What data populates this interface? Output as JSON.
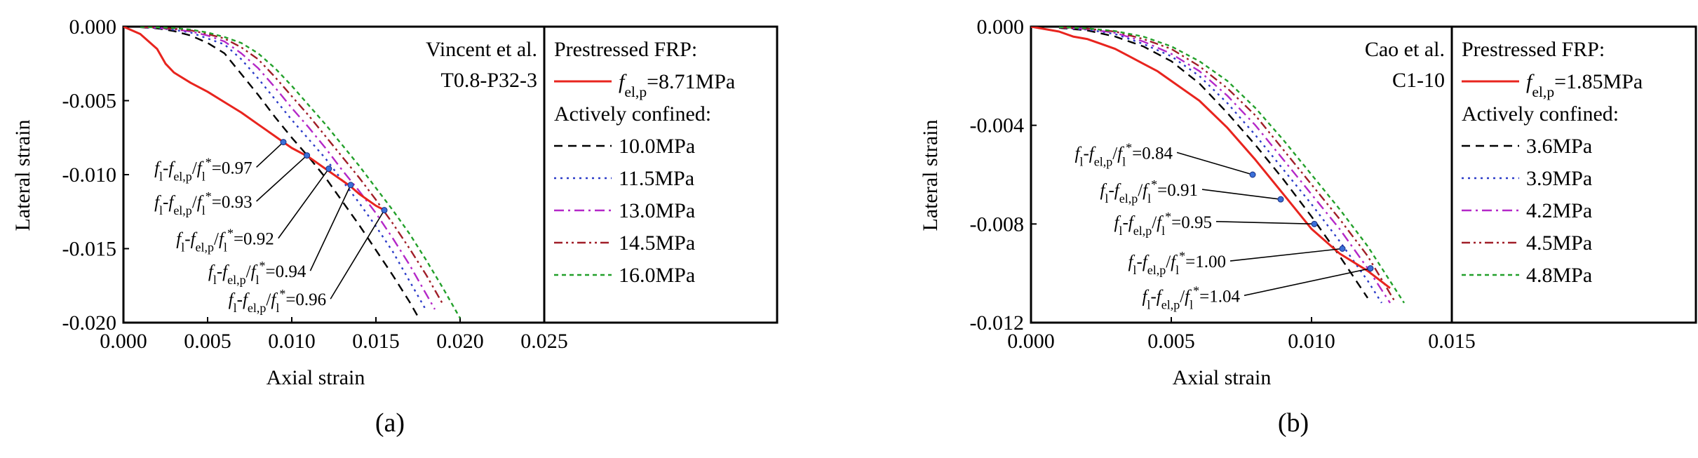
{
  "figure": {
    "panels": [
      {
        "id": "a",
        "caption": "(a)",
        "note_line1": "Vincent et al.",
        "note_line2": "T0.8-P32-3"
      },
      {
        "id": "b",
        "caption": "(b)",
        "note_line1": "Cao et al.",
        "note_line2": "C1-10"
      }
    ]
  },
  "chart_data": [
    {
      "type": "line",
      "panel": "(a)",
      "xlabel": "Axial strain",
      "ylabel": "Lateral strain",
      "xlim": [
        0,
        0.025
      ],
      "ylim": [
        -0.02,
        0.0
      ],
      "x_ticks": [
        "0.000",
        "0.005",
        "0.010",
        "0.015",
        "0.020",
        "0.025"
      ],
      "y_ticks": [
        "0.000",
        "-0.005",
        "-0.010",
        "-0.015",
        "-0.020"
      ],
      "annotation": [
        "Vincent et al.",
        "T0.8-P32-3"
      ],
      "legend_position": "right",
      "legend_groups": [
        {
          "title": "Prestressed FRP:",
          "entries": [
            {
              "parts": [
                [
                  "f",
                  "italic",
                  ""
                ],
                [
                  "el,p",
                  "",
                  "sub"
                ],
                [
                  "=8.71MPa",
                  "",
                  ""
                ]
              ],
              "color": "#e8241e",
              "dash": "solid"
            }
          ]
        },
        {
          "title": "Actively confined:",
          "entries": [
            {
              "parts": [
                [
                  "10.0MPa",
                  "",
                  ""
                ]
              ],
              "color": "#000000",
              "dash": "dash"
            },
            {
              "parts": [
                [
                  "11.5MPa",
                  "",
                  ""
                ]
              ],
              "color": "#2b3bc8",
              "dash": "dot"
            },
            {
              "parts": [
                [
                  "13.0MPa",
                  "",
                  ""
                ]
              ],
              "color": "#b428c8",
              "dash": "dashdot"
            },
            {
              "parts": [
                [
                  "14.5MPa",
                  "",
                  ""
                ]
              ],
              "color": "#a01e28",
              "dash": "dashdotdot"
            },
            {
              "parts": [
                [
                  "16.0MPa",
                  "",
                  ""
                ]
              ],
              "color": "#22a02a",
              "dash": "shortdash"
            }
          ]
        }
      ],
      "series": [
        {
          "name": "fel,p=8.71MPa",
          "color": "#e8241e",
          "dash": "solid",
          "x": [
            0,
            0.001,
            0.002,
            0.0025,
            0.003,
            0.004,
            0.005,
            0.006,
            0.007,
            0.008,
            0.009,
            0.0095,
            0.01,
            0.011,
            0.012,
            0.013,
            0.0135,
            0.014,
            0.015,
            0.0155
          ],
          "y": [
            0,
            -0.0005,
            -0.0015,
            -0.0025,
            -0.0031,
            -0.0038,
            -0.0044,
            -0.0051,
            -0.0058,
            -0.0066,
            -0.0074,
            -0.0078,
            -0.0082,
            -0.0088,
            -0.0096,
            -0.0104,
            -0.0108,
            -0.0113,
            -0.0121,
            -0.0124
          ]
        },
        {
          "name": "10.0MPa",
          "color": "#000000",
          "dash": "dash",
          "x": [
            0.001,
            0.002,
            0.003,
            0.004,
            0.005,
            0.006,
            0.007,
            0.008,
            0.009,
            0.01,
            0.011,
            0.012,
            0.013,
            0.014,
            0.015,
            0.016,
            0.017,
            0.0175
          ],
          "y": [
            -4e-05,
            -0.00012,
            -0.0003,
            -0.0006,
            -0.0011,
            -0.0018,
            -0.0032,
            -0.0046,
            -0.0061,
            -0.0075,
            -0.0088,
            -0.0102,
            -0.0118,
            -0.0134,
            -0.0151,
            -0.0168,
            -0.0186,
            -0.0196
          ]
        },
        {
          "name": "11.5MPa",
          "color": "#2b3bc8",
          "dash": "dot",
          "x": [
            0.001,
            0.002,
            0.003,
            0.004,
            0.005,
            0.006,
            0.007,
            0.008,
            0.009,
            0.01,
            0.011,
            0.012,
            0.013,
            0.014,
            0.015,
            0.016,
            0.017,
            0.018
          ],
          "y": [
            -3e-05,
            -0.0001,
            -0.00022,
            -0.0004,
            -0.0008,
            -0.0012,
            -0.0022,
            -0.0035,
            -0.0049,
            -0.0063,
            -0.0076,
            -0.0089,
            -0.0104,
            -0.0119,
            -0.0135,
            -0.0152,
            -0.0172,
            -0.0192
          ]
        },
        {
          "name": "13.0MPa",
          "color": "#b428c8",
          "dash": "dashdot",
          "x": [
            0.001,
            0.002,
            0.003,
            0.004,
            0.005,
            0.006,
            0.007,
            0.008,
            0.009,
            0.01,
            0.011,
            0.012,
            0.013,
            0.014,
            0.015,
            0.016,
            0.017,
            0.018,
            0.0185
          ],
          "y": [
            -2e-05,
            -8e-05,
            -0.00018,
            -0.00032,
            -0.0006,
            -0.001,
            -0.0018,
            -0.0028,
            -0.0041,
            -0.0055,
            -0.0068,
            -0.0082,
            -0.0097,
            -0.0111,
            -0.0126,
            -0.0143,
            -0.0161,
            -0.0181,
            -0.0191
          ]
        },
        {
          "name": "14.5MPa",
          "color": "#a01e28",
          "dash": "dashdotdot",
          "x": [
            0.001,
            0.002,
            0.003,
            0.004,
            0.005,
            0.006,
            0.007,
            0.008,
            0.009,
            0.01,
            0.011,
            0.012,
            0.013,
            0.014,
            0.015,
            0.016,
            0.017,
            0.018,
            0.019
          ],
          "y": [
            -2e-05,
            -6e-05,
            -0.00014,
            -0.00025,
            -0.0005,
            -0.0008,
            -0.0014,
            -0.0022,
            -0.0034,
            -0.0047,
            -0.006,
            -0.0074,
            -0.0088,
            -0.0102,
            -0.0117,
            -0.0133,
            -0.015,
            -0.0168,
            -0.0188
          ]
        },
        {
          "name": "16.0MPa",
          "color": "#22a02a",
          "dash": "shortdash",
          "x": [
            0.001,
            0.002,
            0.003,
            0.004,
            0.005,
            0.006,
            0.007,
            0.008,
            0.009,
            0.01,
            0.011,
            0.012,
            0.013,
            0.014,
            0.015,
            0.016,
            0.017,
            0.018,
            0.019,
            0.02
          ],
          "y": [
            -2e-05,
            -5e-05,
            -0.0001,
            -0.0002,
            -0.0004,
            -0.0007,
            -0.0011,
            -0.0018,
            -0.0028,
            -0.004,
            -0.0053,
            -0.0066,
            -0.008,
            -0.0094,
            -0.0109,
            -0.0124,
            -0.014,
            -0.0158,
            -0.0177,
            -0.0197
          ]
        }
      ],
      "markers": {
        "x": [
          0.0095,
          0.0109,
          0.0122,
          0.0135,
          0.0155
        ],
        "y": [
          -0.0078,
          -0.0087,
          -0.0096,
          -0.0107,
          -0.0124
        ]
      },
      "callouts": [
        {
          "ratio": "0.97",
          "mx": 0.0095,
          "my": -0.0078,
          "tx": 0.0079,
          "ty": -0.0095
        },
        {
          "ratio": "0.93",
          "mx": 0.0109,
          "my": -0.0087,
          "tx": 0.0079,
          "ty": -0.0118
        },
        {
          "ratio": "0.92",
          "mx": 0.0122,
          "my": -0.0096,
          "tx": 0.0092,
          "ty": -0.0143
        },
        {
          "ratio": "0.94",
          "mx": 0.0135,
          "my": -0.0107,
          "tx": 0.0111,
          "ty": -0.0165
        },
        {
          "ratio": "0.96",
          "mx": 0.0155,
          "my": -0.0124,
          "tx": 0.0123,
          "ty": -0.0184
        }
      ]
    },
    {
      "type": "line",
      "panel": "(b)",
      "xlabel": "Axial strain",
      "ylabel": "Lateral strain",
      "xlim": [
        0,
        0.015
      ],
      "ylim": [
        -0.012,
        0.0
      ],
      "x_ticks": [
        "0.000",
        "0.005",
        "0.010",
        "0.015"
      ],
      "y_ticks": [
        "0.000",
        "-0.004",
        "-0.008",
        "-0.012"
      ],
      "annotation": [
        "Cao et al.",
        "C1-10"
      ],
      "legend_position": "right",
      "legend_groups": [
        {
          "title": "Prestressed FRP:",
          "entries": [
            {
              "parts": [
                [
                  "f",
                  "italic",
                  ""
                ],
                [
                  "el,p",
                  "",
                  "sub"
                ],
                [
                  "=1.85MPa",
                  "",
                  ""
                ]
              ],
              "color": "#e8241e",
              "dash": "solid"
            }
          ]
        },
        {
          "title": "Actively confined:",
          "entries": [
            {
              "parts": [
                [
                  "3.6MPa",
                  "",
                  ""
                ]
              ],
              "color": "#000000",
              "dash": "dash"
            },
            {
              "parts": [
                [
                  "3.9MPa",
                  "",
                  ""
                ]
              ],
              "color": "#2b3bc8",
              "dash": "dot"
            },
            {
              "parts": [
                [
                  "4.2MPa",
                  "",
                  ""
                ]
              ],
              "color": "#b428c8",
              "dash": "dashdot"
            },
            {
              "parts": [
                [
                  "4.5MPa",
                  "",
                  ""
                ]
              ],
              "color": "#a01e28",
              "dash": "dashdotdot"
            },
            {
              "parts": [
                [
                  "4.8MPa",
                  "",
                  ""
                ]
              ],
              "color": "#22a02a",
              "dash": "shortdash"
            }
          ]
        }
      ],
      "series": [
        {
          "name": "fel,p=1.85MPa",
          "color": "#e8241e",
          "dash": "solid",
          "x": [
            0,
            0.0005,
            0.001,
            0.0015,
            0.002,
            0.0025,
            0.003,
            0.0035,
            0.004,
            0.0045,
            0.005,
            0.006,
            0.007,
            0.008,
            0.009,
            0.01,
            0.011,
            0.012,
            0.0128
          ],
          "y": [
            0,
            -0.0001,
            -0.0002,
            -0.0004,
            -0.0005,
            -0.0007,
            -0.0009,
            -0.0012,
            -0.0015,
            -0.0018,
            -0.0022,
            -0.003,
            -0.0041,
            -0.0054,
            -0.0068,
            -0.0082,
            -0.0092,
            -0.0099,
            -0.0106
          ]
        },
        {
          "name": "3.6MPa",
          "color": "#000000",
          "dash": "dash",
          "x": [
            0.001,
            0.002,
            0.003,
            0.004,
            0.005,
            0.006,
            0.007,
            0.008,
            0.009,
            0.01,
            0.011,
            0.012
          ],
          "y": [
            -5e-05,
            -0.00015,
            -0.0004,
            -0.0008,
            -0.0014,
            -0.0023,
            -0.0035,
            -0.0048,
            -0.0062,
            -0.0077,
            -0.0093,
            -0.011
          ]
        },
        {
          "name": "3.9MPa",
          "color": "#2b3bc8",
          "dash": "dot",
          "x": [
            0.001,
            0.002,
            0.003,
            0.004,
            0.005,
            0.006,
            0.007,
            0.008,
            0.009,
            0.01,
            0.011,
            0.012,
            0.0125
          ],
          "y": [
            -4e-05,
            -0.00012,
            -0.0003,
            -0.0007,
            -0.0012,
            -0.002,
            -0.0031,
            -0.0044,
            -0.0058,
            -0.0072,
            -0.0087,
            -0.0103,
            -0.0112
          ]
        },
        {
          "name": "4.2MPa",
          "color": "#b428c8",
          "dash": "dashdot",
          "x": [
            0.001,
            0.002,
            0.003,
            0.004,
            0.005,
            0.006,
            0.007,
            0.008,
            0.009,
            0.01,
            0.011,
            0.012,
            0.0128
          ],
          "y": [
            -3e-05,
            -0.0001,
            -0.00025,
            -0.0006,
            -0.0011,
            -0.0018,
            -0.0028,
            -0.004,
            -0.0054,
            -0.0068,
            -0.0082,
            -0.0098,
            -0.0112
          ]
        },
        {
          "name": "4.5MPa",
          "color": "#a01e28",
          "dash": "dashdotdot",
          "x": [
            0.001,
            0.002,
            0.003,
            0.004,
            0.005,
            0.006,
            0.007,
            0.008,
            0.009,
            0.01,
            0.011,
            0.012,
            0.013
          ],
          "y": [
            -3e-05,
            -8e-05,
            -0.0002,
            -0.0005,
            -0.0009,
            -0.0016,
            -0.0025,
            -0.0036,
            -0.005,
            -0.0064,
            -0.0078,
            -0.0093,
            -0.0112
          ]
        },
        {
          "name": "4.8MPa",
          "color": "#22a02a",
          "dash": "shortdash",
          "x": [
            0.001,
            0.002,
            0.003,
            0.004,
            0.005,
            0.006,
            0.007,
            0.008,
            0.009,
            0.01,
            0.011,
            0.012,
            0.0133
          ],
          "y": [
            -2e-05,
            -7e-05,
            -0.00018,
            -0.0004,
            -0.0008,
            -0.0014,
            -0.0022,
            -0.0033,
            -0.0046,
            -0.006,
            -0.0074,
            -0.0089,
            -0.0112
          ]
        }
      ],
      "markers": {
        "x": [
          0.0079,
          0.0089,
          0.0101,
          0.0111,
          0.0121
        ],
        "y": [
          -0.006,
          -0.007,
          -0.008,
          -0.009,
          -0.0098
        ]
      },
      "callouts": [
        {
          "ratio": "0.84",
          "mx": 0.0079,
          "my": -0.006,
          "tx": 0.0052,
          "ty": -0.0051
        },
        {
          "ratio": "0.91",
          "mx": 0.0089,
          "my": -0.007,
          "tx": 0.0061,
          "ty": -0.0066
        },
        {
          "ratio": "0.95",
          "mx": 0.0101,
          "my": -0.008,
          "tx": 0.0066,
          "ty": -0.0079
        },
        {
          "ratio": "1.00",
          "mx": 0.0111,
          "my": -0.009,
          "tx": 0.0071,
          "ty": -0.0095
        },
        {
          "ratio": "1.04",
          "mx": 0.0121,
          "my": -0.0098,
          "tx": 0.0076,
          "ty": -0.0109
        }
      ]
    }
  ]
}
